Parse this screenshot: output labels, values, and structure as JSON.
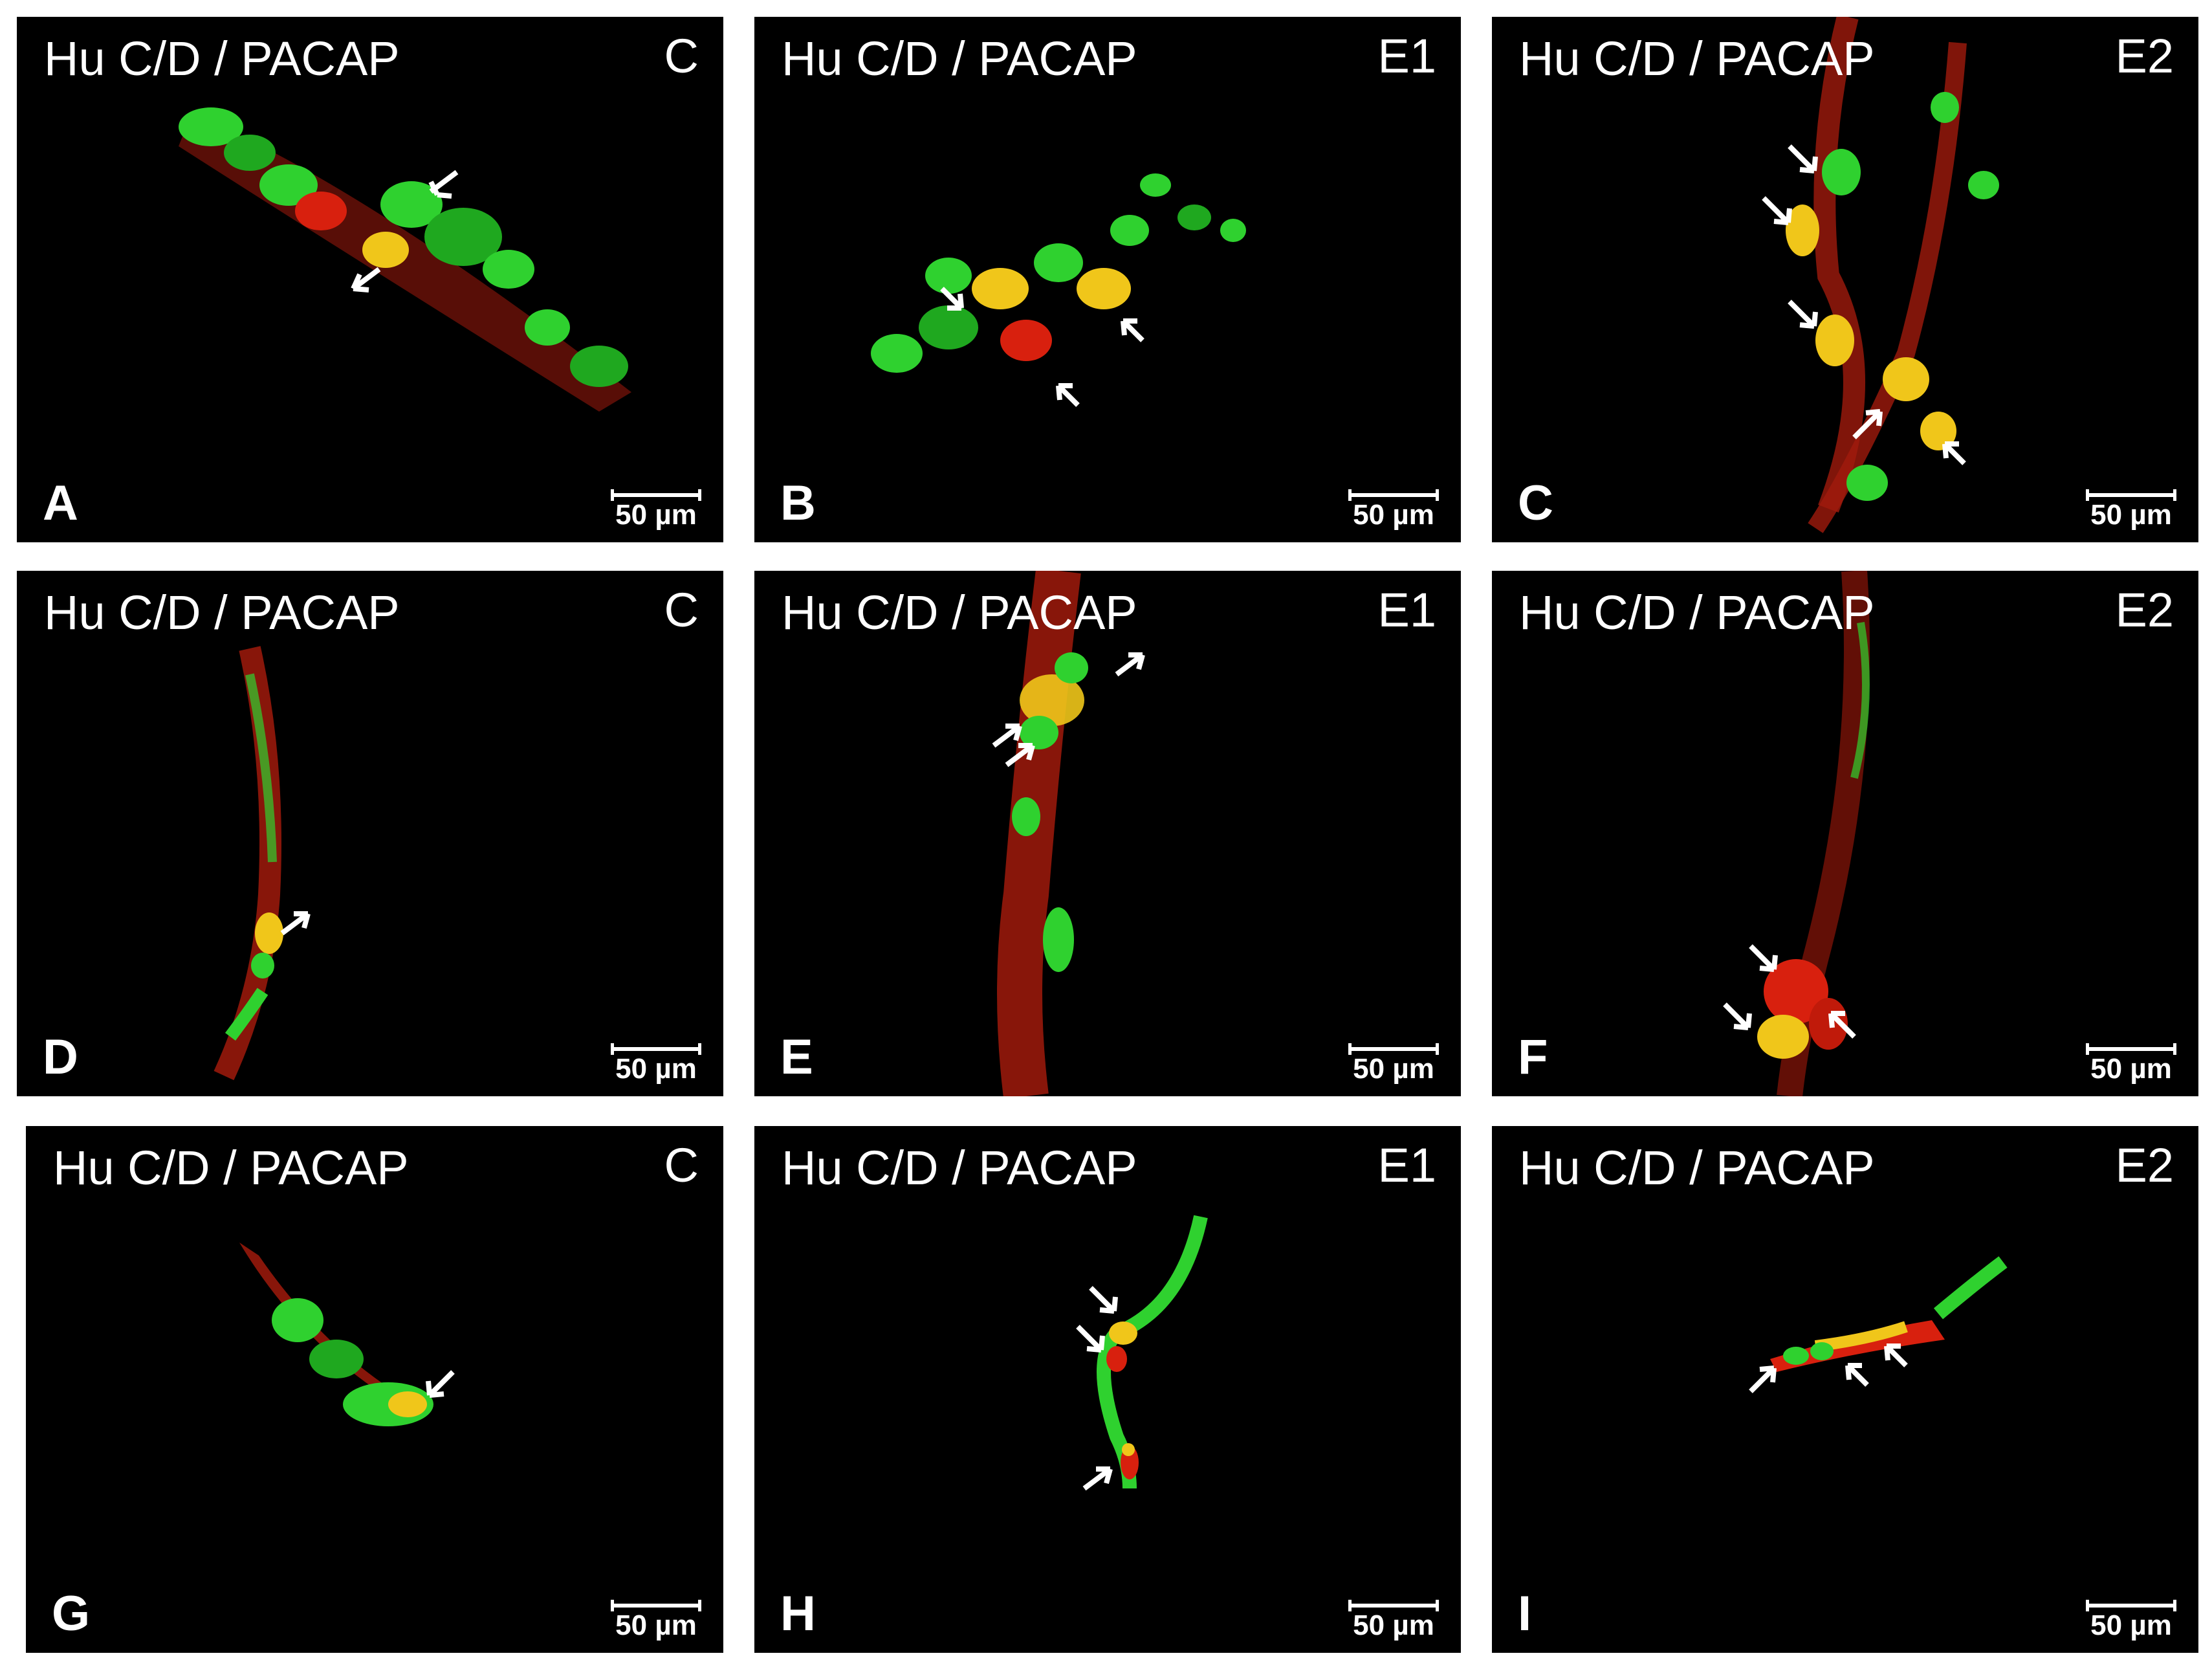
{
  "colors": {
    "background": "#ffffff",
    "panel": "#000000",
    "stain_green": "#2fd12f",
    "stain_red": "#d8200e",
    "stain_yellow": "#f0c61a",
    "text": "#ffffff"
  },
  "panels": [
    {
      "title": "Hu C/D / PACAP",
      "group": "C",
      "letter": "A",
      "scale": "50 µm"
    },
    {
      "title": "Hu C/D / PACAP",
      "group": "E1",
      "letter": "B",
      "scale": "50 µm"
    },
    {
      "title": "Hu C/D / PACAP",
      "group": "E2",
      "letter": "C",
      "scale": "50 µm"
    },
    {
      "title": "Hu C/D / PACAP",
      "group": "C",
      "letter": "D",
      "scale": "50 µm"
    },
    {
      "title": "Hu C/D / PACAP",
      "group": "E1",
      "letter": "E",
      "scale": "50 µm"
    },
    {
      "title": "Hu C/D / PACAP",
      "group": "E2",
      "letter": "F",
      "scale": "50 µm"
    },
    {
      "title": "Hu C/D / PACAP",
      "group": "C",
      "letter": "G",
      "scale": "50 µm"
    },
    {
      "title": "Hu C/D / PACAP",
      "group": "E1",
      "letter": "H",
      "scale": "50 µm"
    },
    {
      "title": "Hu C/D / PACAP",
      "group": "E2",
      "letter": "I",
      "scale": "50 µm"
    }
  ]
}
